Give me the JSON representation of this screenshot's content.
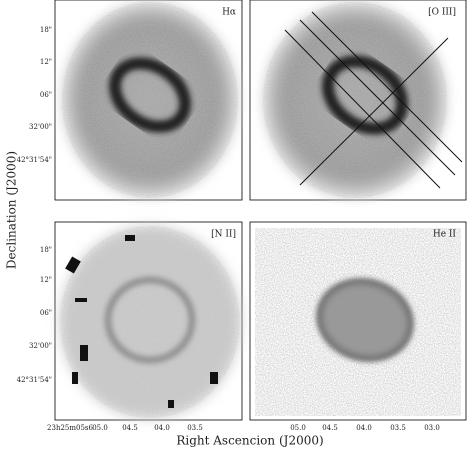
{
  "panels": [
    {
      "label": "Hα"
    },
    {
      "label": "[O III]"
    },
    {
      "label": "[N II]"
    },
    {
      "label": "He II"
    }
  ],
  "y_axis": {
    "title": "Declination (J2000)",
    "ticks_top": [
      "18\"",
      "12\"",
      "06\"",
      "32'00\"",
      "42°31'54\""
    ],
    "ticks_bottom": [
      "18\"",
      "12\"",
      "06\"",
      "32'00\"",
      "42°31'54\""
    ]
  },
  "x_axis": {
    "title": "Right Ascencion (J2000)",
    "ticks_left": [
      "23h25m05s6",
      "05.0",
      "04.5",
      "04.0",
      "03.5"
    ],
    "ticks_right": [
      "05.0",
      "04.5",
      "04.0",
      "03.5",
      "03.0"
    ]
  }
}
